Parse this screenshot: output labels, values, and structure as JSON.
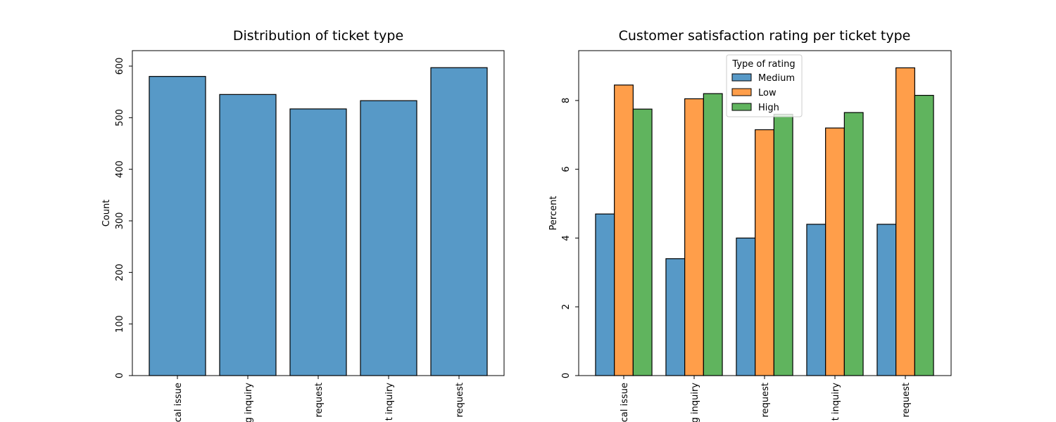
{
  "chart_data": [
    {
      "type": "bar",
      "title": "Distribution of ticket type",
      "xlabel": "",
      "ylabel": "Count",
      "ylim": [
        0,
        630
      ],
      "yticks": [
        0,
        100,
        200,
        300,
        400,
        500,
        600
      ],
      "categories": [
        "cal issue",
        "g inquiry",
        "request",
        "t inquiry",
        "request"
      ],
      "values": [
        580,
        545,
        517,
        533,
        597
      ],
      "color": "#5799c7",
      "grid": false
    },
    {
      "type": "bar",
      "title": "Customer satisfaction rating per ticket type",
      "xlabel": "",
      "ylabel": "Percent",
      "ylim": [
        0,
        9.45
      ],
      "yticks": [
        0,
        2,
        4,
        6,
        8
      ],
      "categories": [
        "cal issue",
        "g inquiry",
        "request",
        "t inquiry",
        "request"
      ],
      "legend": {
        "title": "Type of rating",
        "placement": "upper-center"
      },
      "series": [
        {
          "name": "Medium",
          "color": "#5799c7",
          "values": [
            4.7,
            3.4,
            4.0,
            4.4,
            4.4
          ]
        },
        {
          "name": "Low",
          "color": "#ff9e4a",
          "values": [
            8.45,
            8.05,
            7.15,
            7.2,
            8.95
          ]
        },
        {
          "name": "High",
          "color": "#60b45e",
          "values": [
            7.75,
            8.2,
            7.6,
            7.65,
            8.15
          ]
        }
      ],
      "grid": false
    }
  ]
}
